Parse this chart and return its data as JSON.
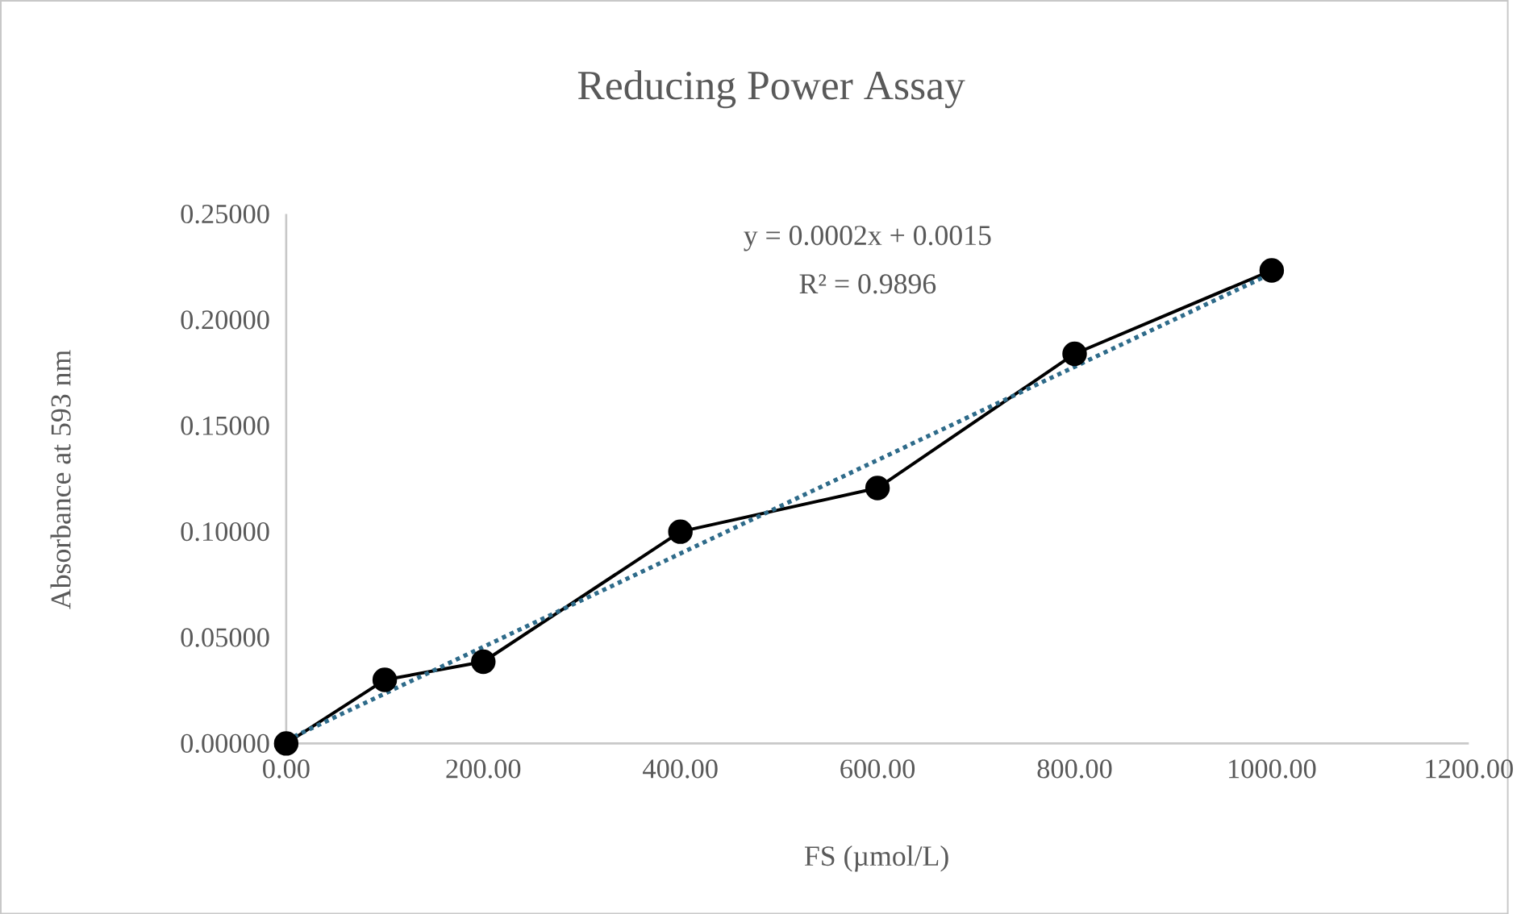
{
  "chart_data": {
    "type": "line",
    "title": "Reducing Power Assay",
    "xlabel": "FS (µmol/L)",
    "ylabel": "Absorbance at 593 nm",
    "x": [
      0,
      100,
      200,
      400,
      600,
      800,
      1000
    ],
    "series": [
      {
        "color": "#000000",
        "marker": "circle",
        "line_style": "solid",
        "values": [
          0,
          0.03,
          0.0386,
          0.1,
          0.1206,
          0.184,
          0.2234
        ]
      },
      {
        "type": "line",
        "color": "#2e6b8a",
        "marker": "none",
        "line_style": "dotted",
        "x": [
          0,
          1000
        ],
        "values": [
          0.0015,
          0.222
        ]
      }
    ],
    "annotations": [
      "y = 0.0002x + 0.0015",
      "R² = 0.9896"
    ],
    "xlim": [
      0,
      1200
    ],
    "ylim": [
      0,
      0.25
    ],
    "xticks": [
      {
        "value": 0,
        "label": "0.00"
      },
      {
        "value": 200,
        "label": "200.00"
      },
      {
        "value": 400,
        "label": "400.00"
      },
      {
        "value": 600,
        "label": "600.00"
      },
      {
        "value": 800,
        "label": "800.00"
      },
      {
        "value": 1000,
        "label": "1000.00"
      },
      {
        "value": 1200,
        "label": "1200.00"
      }
    ],
    "yticks": [
      {
        "value": 0,
        "label": "0.00000"
      },
      {
        "value": 0.05,
        "label": "0.05000"
      },
      {
        "value": 0.1,
        "label": "0.10000"
      },
      {
        "value": 0.15,
        "label": "0.15000"
      },
      {
        "value": 0.2,
        "label": "0.20000"
      },
      {
        "value": 0.25,
        "label": "0.25000"
      }
    ],
    "grid": false
  }
}
